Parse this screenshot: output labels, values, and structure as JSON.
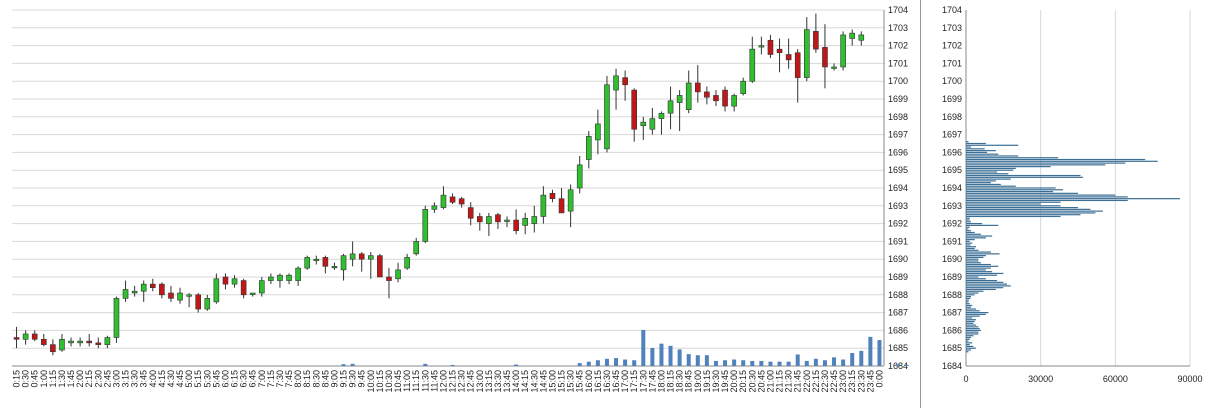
{
  "colors": {
    "grid": "#d8d8d8",
    "up_fill": "#2fbf2f",
    "down_fill": "#c01818",
    "candle_outline": "#333333",
    "volume_bar": "#4f81bd",
    "profile_bar": "#3b6f96",
    "axis_text": "#222222"
  },
  "chart_data": [
    {
      "type": "candlestick",
      "title": "",
      "xlabel": "",
      "ylabel": "",
      "ylim": [
        1684,
        1704
      ],
      "y_ticks": [
        "1684",
        "1685",
        "1686",
        "1687",
        "1688",
        "1689",
        "1690",
        "1691",
        "1692",
        "1693",
        "1694",
        "1695",
        "1696",
        "1697",
        "1698",
        "1699",
        "1700",
        "1701",
        "1702",
        "1703",
        "1704"
      ],
      "x_ticks": [
        "0:15",
        "0:30",
        "0:45",
        "1:00",
        "1:15",
        "1:30",
        "1:45",
        "2:00",
        "2:15",
        "2:30",
        "2:45",
        "3:00",
        "3:15",
        "3:30",
        "3:45",
        "4:00",
        "4:15",
        "4:30",
        "4:45",
        "5:00",
        "5:15",
        "5:30",
        "5:45",
        "6:00",
        "6:15",
        "6:30",
        "6:45",
        "7:00",
        "7:15",
        "7:30",
        "7:45",
        "8:00",
        "8:15",
        "8:30",
        "8:45",
        "9:00",
        "9:15",
        "9:30",
        "9:45",
        "10:00",
        "10:15",
        "10:30",
        "10:45",
        "11:00",
        "11:15",
        "11:30",
        "11:45",
        "12:00",
        "12:15",
        "12:30",
        "12:45",
        "13:00",
        "13:15",
        "13:30",
        "13:45",
        "14:00",
        "14:15",
        "14:30",
        "14:45",
        "15:00",
        "15:15",
        "15:30",
        "15:45",
        "16:00",
        "16:15",
        "16:30",
        "16:45",
        "17:00",
        "17:15",
        "17:30",
        "17:45",
        "18:00",
        "18:15",
        "18:30",
        "18:45",
        "19:00",
        "19:15",
        "19:30",
        "19:45",
        "20:00",
        "20:15",
        "20:30",
        "20:45",
        "21:00",
        "21:15",
        "21:30",
        "21:45",
        "22:00",
        "22:15",
        "22:30",
        "22:45",
        "23:00",
        "23:15",
        "23:30",
        "23:45",
        "0:00"
      ],
      "candles": [
        {
          "o": 1685.6,
          "h": 1686.2,
          "l": 1685.0,
          "c": 1685.5
        },
        {
          "o": 1685.5,
          "h": 1686.0,
          "l": 1685.2,
          "c": 1685.8
        },
        {
          "o": 1685.8,
          "h": 1686.0,
          "l": 1685.4,
          "c": 1685.5
        },
        {
          "o": 1685.5,
          "h": 1685.8,
          "l": 1685.1,
          "c": 1685.2
        },
        {
          "o": 1685.2,
          "h": 1685.5,
          "l": 1684.6,
          "c": 1684.8
        },
        {
          "o": 1684.9,
          "h": 1685.8,
          "l": 1684.8,
          "c": 1685.5
        },
        {
          "o": 1685.3,
          "h": 1685.6,
          "l": 1685.1,
          "c": 1685.4
        },
        {
          "o": 1685.3,
          "h": 1685.6,
          "l": 1685.1,
          "c": 1685.4
        },
        {
          "o": 1685.4,
          "h": 1685.8,
          "l": 1685.1,
          "c": 1685.3
        },
        {
          "o": 1685.3,
          "h": 1685.6,
          "l": 1685.0,
          "c": 1685.2
        },
        {
          "o": 1685.2,
          "h": 1685.7,
          "l": 1685.0,
          "c": 1685.6
        },
        {
          "o": 1685.6,
          "h": 1687.9,
          "l": 1685.3,
          "c": 1687.8
        },
        {
          "o": 1687.8,
          "h": 1688.8,
          "l": 1687.6,
          "c": 1688.3
        },
        {
          "o": 1688.1,
          "h": 1688.5,
          "l": 1687.9,
          "c": 1688.2
        },
        {
          "o": 1688.2,
          "h": 1688.8,
          "l": 1687.6,
          "c": 1688.6
        },
        {
          "o": 1688.6,
          "h": 1688.9,
          "l": 1688.2,
          "c": 1688.4
        },
        {
          "o": 1688.6,
          "h": 1688.7,
          "l": 1687.8,
          "c": 1688.0
        },
        {
          "o": 1688.1,
          "h": 1688.5,
          "l": 1687.6,
          "c": 1687.8
        },
        {
          "o": 1687.7,
          "h": 1688.4,
          "l": 1687.5,
          "c": 1688.1
        },
        {
          "o": 1688.0,
          "h": 1688.1,
          "l": 1687.3,
          "c": 1688.0
        },
        {
          "o": 1688.0,
          "h": 1688.1,
          "l": 1687.0,
          "c": 1687.2
        },
        {
          "o": 1687.2,
          "h": 1688.0,
          "l": 1687.1,
          "c": 1687.8
        },
        {
          "o": 1687.6,
          "h": 1689.2,
          "l": 1687.5,
          "c": 1688.9
        },
        {
          "o": 1689.0,
          "h": 1689.2,
          "l": 1688.3,
          "c": 1688.6
        },
        {
          "o": 1688.6,
          "h": 1689.1,
          "l": 1688.4,
          "c": 1688.9
        },
        {
          "o": 1688.8,
          "h": 1688.9,
          "l": 1687.8,
          "c": 1688.0
        },
        {
          "o": 1688.1,
          "h": 1688.1,
          "l": 1687.9,
          "c": 1688.1
        },
        {
          "o": 1688.1,
          "h": 1689.0,
          "l": 1687.9,
          "c": 1688.8
        },
        {
          "o": 1688.8,
          "h": 1689.2,
          "l": 1688.6,
          "c": 1689.0
        },
        {
          "o": 1688.8,
          "h": 1689.2,
          "l": 1688.4,
          "c": 1689.1
        },
        {
          "o": 1688.8,
          "h": 1689.2,
          "l": 1688.6,
          "c": 1689.1
        },
        {
          "o": 1688.8,
          "h": 1689.6,
          "l": 1688.5,
          "c": 1689.5
        },
        {
          "o": 1689.5,
          "h": 1690.2,
          "l": 1689.4,
          "c": 1690.1
        },
        {
          "o": 1690.0,
          "h": 1690.2,
          "l": 1689.7,
          "c": 1690.0
        },
        {
          "o": 1690.1,
          "h": 1690.2,
          "l": 1689.2,
          "c": 1689.6
        },
        {
          "o": 1689.6,
          "h": 1689.8,
          "l": 1689.4,
          "c": 1689.6
        },
        {
          "o": 1689.4,
          "h": 1690.3,
          "l": 1688.8,
          "c": 1690.2
        },
        {
          "o": 1690.0,
          "h": 1691.0,
          "l": 1689.6,
          "c": 1690.3
        },
        {
          "o": 1690.3,
          "h": 1690.4,
          "l": 1689.3,
          "c": 1690.0
        },
        {
          "o": 1690.0,
          "h": 1690.4,
          "l": 1688.9,
          "c": 1690.2
        },
        {
          "o": 1690.2,
          "h": 1690.3,
          "l": 1689.1,
          "c": 1689.0
        },
        {
          "o": 1689.0,
          "h": 1689.5,
          "l": 1687.8,
          "c": 1688.8
        },
        {
          "o": 1688.9,
          "h": 1689.8,
          "l": 1688.7,
          "c": 1689.4
        },
        {
          "o": 1689.5,
          "h": 1690.3,
          "l": 1689.4,
          "c": 1690.1
        },
        {
          "o": 1690.3,
          "h": 1691.2,
          "l": 1690.2,
          "c": 1691.0
        },
        {
          "o": 1691.0,
          "h": 1693.0,
          "l": 1690.9,
          "c": 1692.8
        },
        {
          "o": 1692.8,
          "h": 1693.2,
          "l": 1692.6,
          "c": 1693.0
        },
        {
          "o": 1692.9,
          "h": 1694.1,
          "l": 1692.8,
          "c": 1693.6
        },
        {
          "o": 1693.5,
          "h": 1693.7,
          "l": 1693.1,
          "c": 1693.2
        },
        {
          "o": 1693.4,
          "h": 1693.5,
          "l": 1692.9,
          "c": 1693.1
        },
        {
          "o": 1692.9,
          "h": 1693.2,
          "l": 1691.9,
          "c": 1692.3
        },
        {
          "o": 1692.4,
          "h": 1692.6,
          "l": 1691.6,
          "c": 1692.1
        },
        {
          "o": 1692.0,
          "h": 1692.6,
          "l": 1691.3,
          "c": 1692.4
        },
        {
          "o": 1692.5,
          "h": 1692.6,
          "l": 1691.7,
          "c": 1692.1
        },
        {
          "o": 1692.2,
          "h": 1692.4,
          "l": 1691.8,
          "c": 1692.2
        },
        {
          "o": 1692.2,
          "h": 1692.8,
          "l": 1691.4,
          "c": 1691.6
        },
        {
          "o": 1691.9,
          "h": 1692.6,
          "l": 1691.4,
          "c": 1692.3
        },
        {
          "o": 1692.0,
          "h": 1693.0,
          "l": 1691.5,
          "c": 1692.4
        },
        {
          "o": 1692.4,
          "h": 1694.1,
          "l": 1692.0,
          "c": 1693.6
        },
        {
          "o": 1693.7,
          "h": 1693.9,
          "l": 1693.2,
          "c": 1693.4
        },
        {
          "o": 1693.4,
          "h": 1694.0,
          "l": 1692.7,
          "c": 1692.6
        },
        {
          "o": 1692.7,
          "h": 1694.2,
          "l": 1691.8,
          "c": 1693.9
        },
        {
          "o": 1694.0,
          "h": 1695.8,
          "l": 1693.7,
          "c": 1695.3
        },
        {
          "o": 1695.6,
          "h": 1697.2,
          "l": 1695.1,
          "c": 1696.9
        },
        {
          "o": 1696.7,
          "h": 1698.4,
          "l": 1695.9,
          "c": 1697.6
        },
        {
          "o": 1696.2,
          "h": 1700.3,
          "l": 1696.0,
          "c": 1699.8
        },
        {
          "o": 1699.5,
          "h": 1700.7,
          "l": 1698.4,
          "c": 1700.3
        },
        {
          "o": 1700.2,
          "h": 1700.6,
          "l": 1698.9,
          "c": 1699.8
        },
        {
          "o": 1699.5,
          "h": 1699.6,
          "l": 1696.6,
          "c": 1697.3
        },
        {
          "o": 1697.5,
          "h": 1698.0,
          "l": 1696.7,
          "c": 1697.7
        },
        {
          "o": 1697.3,
          "h": 1698.5,
          "l": 1697.0,
          "c": 1697.9
        },
        {
          "o": 1697.9,
          "h": 1698.3,
          "l": 1697.0,
          "c": 1698.2
        },
        {
          "o": 1698.2,
          "h": 1699.7,
          "l": 1697.3,
          "c": 1698.9
        },
        {
          "o": 1698.8,
          "h": 1699.5,
          "l": 1697.2,
          "c": 1699.2
        },
        {
          "o": 1698.4,
          "h": 1700.6,
          "l": 1698.2,
          "c": 1699.9
        },
        {
          "o": 1699.9,
          "h": 1700.9,
          "l": 1698.8,
          "c": 1699.4
        },
        {
          "o": 1699.4,
          "h": 1699.7,
          "l": 1698.7,
          "c": 1699.1
        },
        {
          "o": 1699.2,
          "h": 1699.5,
          "l": 1698.6,
          "c": 1698.9
        },
        {
          "o": 1699.5,
          "h": 1699.7,
          "l": 1698.3,
          "c": 1698.6
        },
        {
          "o": 1698.6,
          "h": 1699.3,
          "l": 1698.3,
          "c": 1699.2
        },
        {
          "o": 1699.3,
          "h": 1700.2,
          "l": 1699.2,
          "c": 1700.0
        },
        {
          "o": 1700.0,
          "h": 1702.5,
          "l": 1699.9,
          "c": 1701.8
        },
        {
          "o": 1702.0,
          "h": 1702.5,
          "l": 1701.5,
          "c": 1702.0
        },
        {
          "o": 1702.3,
          "h": 1702.6,
          "l": 1701.3,
          "c": 1701.5
        },
        {
          "o": 1701.8,
          "h": 1702.4,
          "l": 1700.5,
          "c": 1701.6
        },
        {
          "o": 1701.5,
          "h": 1702.4,
          "l": 1700.7,
          "c": 1701.2
        },
        {
          "o": 1701.6,
          "h": 1701.8,
          "l": 1698.8,
          "c": 1700.2
        },
        {
          "o": 1700.2,
          "h": 1703.6,
          "l": 1700.0,
          "c": 1702.9
        },
        {
          "o": 1702.8,
          "h": 1703.8,
          "l": 1701.6,
          "c": 1701.8
        },
        {
          "o": 1701.9,
          "h": 1703.2,
          "l": 1699.6,
          "c": 1700.8
        },
        {
          "o": 1700.8,
          "h": 1701.0,
          "l": 1700.6,
          "c": 1700.8
        },
        {
          "o": 1700.8,
          "h": 1702.8,
          "l": 1700.6,
          "c": 1702.6
        },
        {
          "o": 1702.4,
          "h": 1702.9,
          "l": 1702.0,
          "c": 1702.7
        },
        {
          "o": 1702.3,
          "h": 1702.8,
          "l": 1702.0,
          "c": 1702.6
        }
      ],
      "volume": [
        0,
        0,
        0,
        0,
        0,
        0,
        0,
        0,
        0,
        0,
        0,
        0,
        0,
        0,
        0,
        0,
        0,
        0,
        0,
        0,
        0,
        0,
        0,
        0,
        0,
        0,
        0,
        0,
        0,
        0,
        0,
        0,
        0,
        0,
        0,
        0,
        0.05,
        0.06,
        0,
        0,
        0,
        0,
        0,
        0,
        0,
        0.06,
        0,
        0,
        0.03,
        0,
        0,
        0,
        0,
        0,
        0,
        0.04,
        0,
        0,
        0,
        0,
        0,
        0,
        0.08,
        0.12,
        0.16,
        0.2,
        0.22,
        0.18,
        0.16,
        1.0,
        0.5,
        0.62,
        0.56,
        0.46,
        0.33,
        0.3,
        0.3,
        0.14,
        0.16,
        0.18,
        0.16,
        0.14,
        0.14,
        0.12,
        0.12,
        0.12,
        0.32,
        0.14,
        0.2,
        0.16,
        0.24,
        0.18,
        0.36,
        0.42,
        0.81,
        0.72,
        0,
        0.05,
        0.02,
        0
      ]
    },
    {
      "type": "bar",
      "orientation": "horizontal",
      "title": "",
      "ylim": [
        1684,
        1704
      ],
      "y_ticks": [
        "1684",
        "1685",
        "1686",
        "1687",
        "1688",
        "1689",
        "1690",
        "1691",
        "1692",
        "1693",
        "1694",
        "1695",
        "1696",
        "1697",
        "1698",
        "1699",
        "1700",
        "1701",
        "1702",
        "1703",
        "1704"
      ],
      "x_ticks": [
        "0",
        "30000",
        "60000",
        "90000"
      ],
      "xlim": [
        0,
        90000
      ],
      "levels_start": 1684.8,
      "levels_step": 0.1,
      "values": [
        1000,
        2000,
        4000,
        3000,
        1500,
        2500,
        1000,
        1500,
        2000,
        3000,
        5000,
        5000,
        6000,
        5500,
        5000,
        4000,
        3000,
        3500,
        4000,
        2500,
        5500,
        8000,
        9000,
        5500,
        4000,
        2000,
        2500,
        1500,
        1000,
        1200,
        1800,
        2000,
        3500,
        5000,
        7000,
        12000,
        15000,
        18000,
        16500,
        15000,
        12500,
        8000,
        5000,
        12500,
        15000,
        10500,
        8000,
        10000,
        13000,
        10000,
        6000,
        5000,
        5000,
        7000,
        8000,
        13500,
        10000,
        5000,
        3500,
        4000,
        1800,
        2500,
        1500,
        3500,
        8000,
        10500,
        6000,
        3500,
        2000,
        1000,
        1500,
        13000,
        6500,
        2000,
        1500,
        1500,
        38000,
        46000,
        52000,
        55000,
        50000,
        45000,
        38000,
        30000,
        38000,
        65000,
        86000,
        65000,
        60000,
        45000,
        35000,
        39000,
        36000,
        20000,
        14000,
        10000,
        12000,
        18000,
        47000,
        46000,
        17000,
        12500,
        19000,
        20000,
        34000,
        56000,
        64000,
        77000,
        72000,
        37000,
        21000,
        13000,
        8500,
        12000,
        7500,
        2000,
        21000,
        8000,
        1000
      ]
    }
  ]
}
